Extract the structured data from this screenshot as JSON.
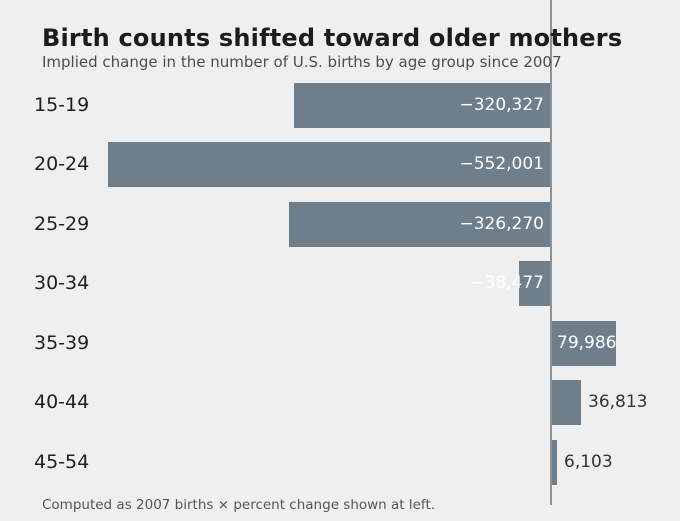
{
  "title": "Birth counts shifted toward older mothers",
  "subtitle": "Implied change in the number of U.S. births by age group since 2007",
  "footnote": "Computed as 2007 births × percent change shown at left.",
  "colors": {
    "background": "#efefef",
    "bar": "#6e7f8b",
    "zero_axis": "#8e9399",
    "title_text": "#1c1c1c",
    "subtitle_text": "#4d4d4d",
    "value_label_inside": "#ffffff",
    "value_label_outside": "#333333"
  },
  "chart_data": {
    "type": "bar",
    "orientation": "horizontal",
    "title": "Birth counts shifted toward older mothers",
    "subtitle": "Implied change in the number of U.S. births by age group since 2007",
    "footnote": "Computed as 2007 births × percent change shown at left.",
    "categories": [
      "15-19",
      "20-24",
      "25-29",
      "30-34",
      "35-39",
      "40-44",
      "45-54"
    ],
    "values": [
      -320327,
      -552001,
      -326270,
      -38477,
      79986,
      36813,
      6103
    ],
    "value_labels": [
      "−320,327",
      "−552,001",
      "−326,270",
      "−38,477",
      "79,986",
      "36,813",
      "6,103"
    ],
    "label_styles": [
      "inside-end",
      "inside-end",
      "inside-end",
      "inside-end",
      "inside-start",
      "outside",
      "outside"
    ],
    "xlabel": "",
    "ylabel": "",
    "xlim": [
      -690000,
      160000
    ],
    "zero_line": true,
    "gridlines": false,
    "legend": "none"
  }
}
